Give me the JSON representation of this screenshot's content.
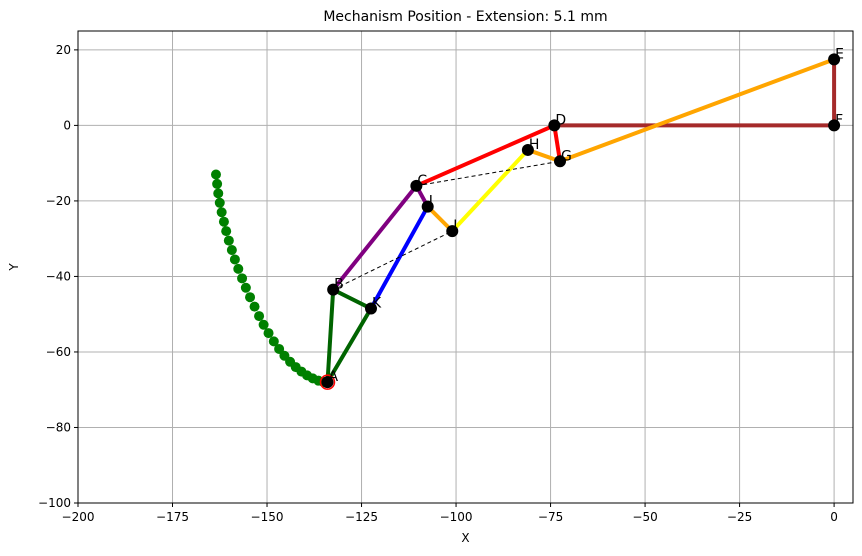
{
  "chart_data": {
    "type": "scatter",
    "title": "Mechanism Position - Extension: 5.1 mm",
    "xlabel": "X",
    "ylabel": "Y",
    "xlim": [
      -200,
      5
    ],
    "ylim": [
      -100,
      25
    ],
    "xticks": [
      -200,
      -175,
      -150,
      -125,
      -100,
      -75,
      -50,
      -25,
      0
    ],
    "yticks": [
      -100,
      -80,
      -60,
      -40,
      -20,
      0,
      20
    ],
    "grid": true,
    "points": [
      {
        "label": "A",
        "x": -134,
        "y": -68
      },
      {
        "label": "B",
        "x": -132.5,
        "y": -43.5
      },
      {
        "label": "C",
        "x": -110.5,
        "y": -16
      },
      {
        "label": "D",
        "x": -74,
        "y": 0
      },
      {
        "label": "E",
        "x": 0,
        "y": 17.5
      },
      {
        "label": "F",
        "x": 0,
        "y": 0
      },
      {
        "label": "G",
        "x": -72.5,
        "y": -9.5
      },
      {
        "label": "H",
        "x": -81,
        "y": -6.5
      },
      {
        "label": "I",
        "x": -101,
        "y": -28
      },
      {
        "label": "J",
        "x": -107.5,
        "y": -21.5
      },
      {
        "label": "K",
        "x": -122.5,
        "y": -48.5
      }
    ],
    "links": [
      {
        "from": "D",
        "to": "F",
        "color": "#a52a2a"
      },
      {
        "from": "F",
        "to": "E",
        "color": "#a52a2a"
      },
      {
        "from": "E",
        "to": "G",
        "color": "#ffa500"
      },
      {
        "from": "G",
        "to": "H",
        "color": "#ffa500"
      },
      {
        "from": "D",
        "to": "G",
        "color": "#ff0000"
      },
      {
        "from": "C",
        "to": "D",
        "color": "#ff0000"
      },
      {
        "from": "H",
        "to": "I",
        "color": "#ffff00"
      },
      {
        "from": "J",
        "to": "I",
        "color": "#ffa500"
      },
      {
        "from": "B",
        "to": "C",
        "color": "#800080"
      },
      {
        "from": "C",
        "to": "J",
        "color": "#800080"
      },
      {
        "from": "J",
        "to": "K",
        "color": "#0000ff"
      },
      {
        "from": "A",
        "to": "B",
        "color": "#006400"
      },
      {
        "from": "B",
        "to": "K",
        "color": "#006400"
      },
      {
        "from": "A",
        "to": "K",
        "color": "#006400"
      }
    ],
    "dashed_links": [
      {
        "from": "C",
        "to": "G"
      },
      {
        "from": "B",
        "to": "I"
      }
    ],
    "trace": {
      "color": "#008000",
      "x": [
        -163.5,
        -163.2,
        -162.9,
        -162.5,
        -162,
        -161.4,
        -160.8,
        -160.1,
        -159.3,
        -158.5,
        -157.6,
        -156.6,
        -155.6,
        -154.5,
        -153.3,
        -152.1,
        -150.9,
        -149.6,
        -148.2,
        -146.8,
        -145.4,
        -143.9,
        -142.4,
        -140.9,
        -139.4,
        -137.9,
        -136.4,
        -135
      ],
      "y": [
        -13,
        -15.5,
        -18,
        -20.5,
        -23,
        -25.5,
        -28,
        -30.5,
        -33,
        -35.5,
        -38,
        -40.5,
        -43,
        -45.5,
        -48,
        -50.5,
        -52.8,
        -55,
        -57.2,
        -59.2,
        -61,
        -62.6,
        -64,
        -65.2,
        -66.2,
        -67,
        -67.6,
        -68
      ]
    },
    "colors": {
      "point": "#000000",
      "pivot_ring": "#ff0000",
      "dashed": "#000000",
      "grid": "#b0b0b0"
    }
  }
}
